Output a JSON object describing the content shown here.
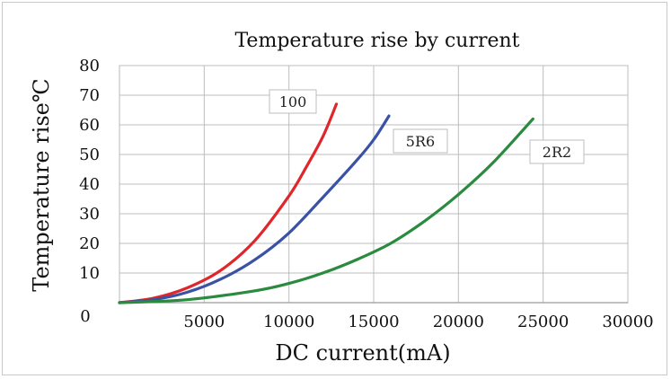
{
  "chart_data": {
    "type": "line",
    "title": "Temperature rise by current",
    "xlabel": "DC current(mA)",
    "ylabel": "Temperature rise℃",
    "xlim": [
      0,
      30000
    ],
    "ylim": [
      0,
      80
    ],
    "xticks": [
      5000,
      10000,
      15000,
      20000,
      25000,
      30000
    ],
    "yticks": [
      10,
      20,
      30,
      40,
      50,
      60,
      70,
      80
    ],
    "origin_label": "0",
    "grid": true,
    "series": [
      {
        "name": "100",
        "color": "#e0262b",
        "x": [
          0,
          2000,
          4000,
          6000,
          8000,
          10000,
          11000,
          12000,
          12800
        ],
        "y": [
          0,
          1.5,
          5,
          11,
          21,
          36,
          45.5,
          56,
          67
        ]
      },
      {
        "name": "5R6",
        "color": "#3a52a6",
        "x": [
          0,
          2000,
          4000,
          6000,
          8000,
          10000,
          12000,
          14000,
          15000,
          15900
        ],
        "y": [
          0,
          1,
          3.5,
          8,
          14.5,
          23.5,
          35.5,
          48,
          55,
          63
        ]
      },
      {
        "name": "2R2",
        "color": "#2a8a3e",
        "x": [
          0,
          4000,
          8000,
          10000,
          12000,
          14000,
          16000,
          18000,
          20000,
          22000,
          24400
        ],
        "y": [
          0,
          1,
          4,
          6.5,
          10,
          14.5,
          20,
          27.5,
          36.5,
          47,
          62
        ]
      }
    ]
  }
}
